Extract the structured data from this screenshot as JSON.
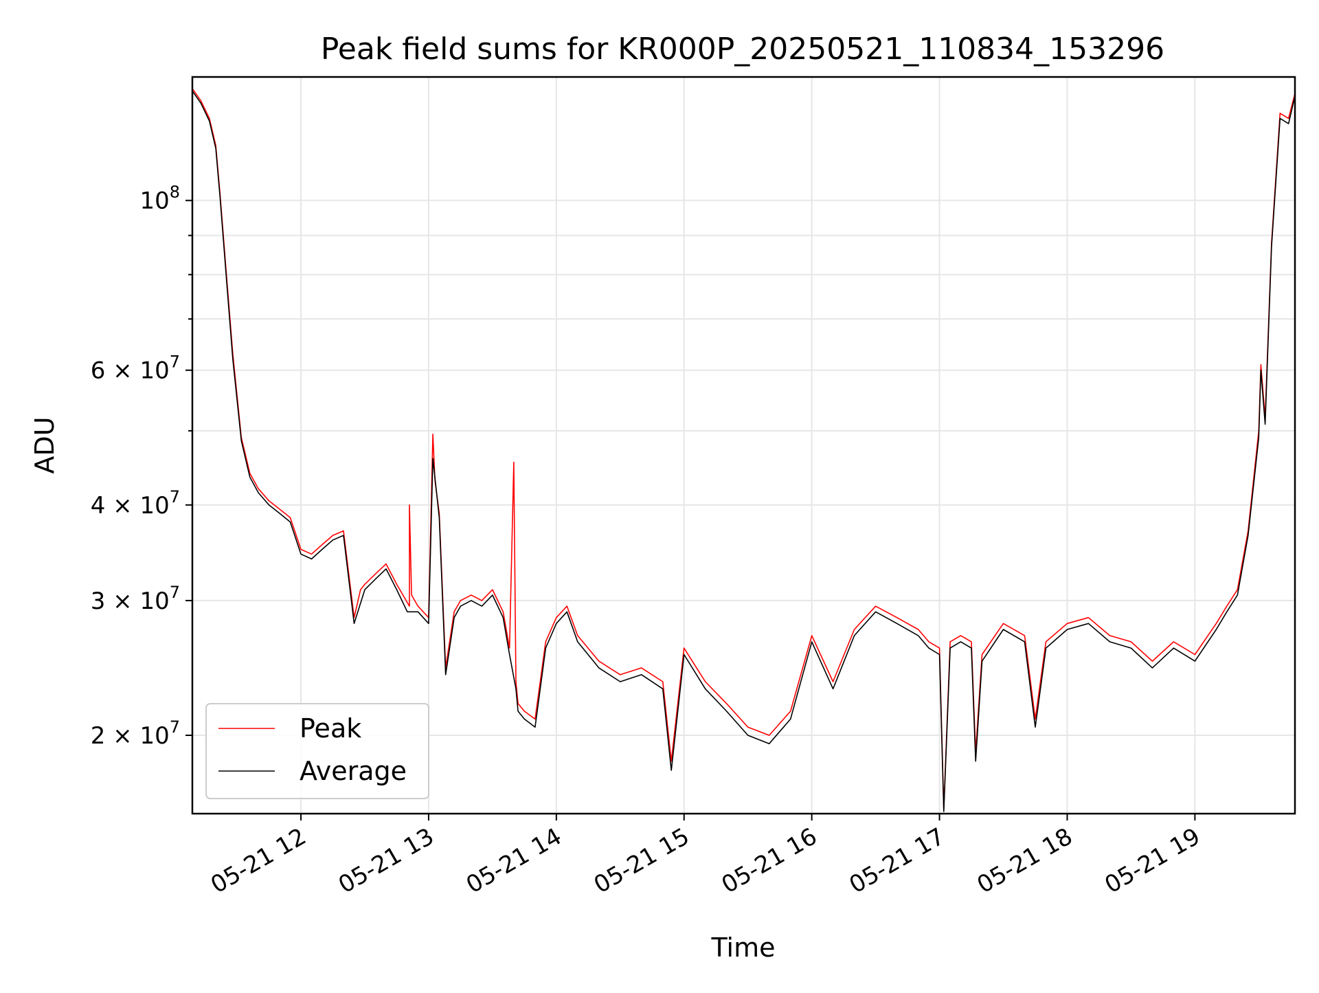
{
  "chart_data": {
    "type": "line",
    "title": "Peak field sums for KR000P_20250521_110834_153296",
    "xlabel": "Time",
    "ylabel": "ADU",
    "y_scale": "log",
    "xlim": [
      "05-21 11:09",
      "05-21 19:47"
    ],
    "ylim": [
      15800000,
      145000000
    ],
    "x_ticks": [
      "05-21 12:00",
      "05-21 13:00",
      "05-21 14:00",
      "05-21 15:00",
      "05-21 16:00",
      "05-21 17:00",
      "05-21 18:00",
      "05-21 19:00"
    ],
    "x_tick_labels": [
      "05-21 12",
      "05-21 13",
      "05-21 14",
      "05-21 15",
      "05-21 16",
      "05-21 17",
      "05-21 18",
      "05-21 19"
    ],
    "y_major_ticks": [
      {
        "value": 20000000,
        "mantissa": "2",
        "exponent": "7"
      },
      {
        "value": 30000000,
        "mantissa": "3",
        "exponent": "7"
      },
      {
        "value": 40000000,
        "mantissa": "4",
        "exponent": "7"
      },
      {
        "value": 60000000,
        "mantissa": "6",
        "exponent": "7"
      },
      {
        "value": 100000000,
        "mantissa": "",
        "exponent": "8"
      }
    ],
    "y_minor_ticks": [
      50000000,
      70000000,
      80000000,
      90000000
    ],
    "grid": true,
    "legend_position": "lower-left",
    "series": [
      {
        "name": "Peak",
        "color": "#ff0000",
        "x": [
          "05-21 11:09",
          "05-21 11:13",
          "05-21 11:17",
          "05-21 11:20",
          "05-21 11:22",
          "05-21 11:25",
          "05-21 11:28",
          "05-21 11:32",
          "05-21 11:36",
          "05-21 11:40",
          "05-21 11:45",
          "05-21 11:50",
          "05-21 11:55",
          "05-21 12:00",
          "05-21 12:05",
          "05-21 12:10",
          "05-21 12:15",
          "05-21 12:20",
          "05-21 12:25",
          "05-21 12:28",
          "05-21 12:30",
          "05-21 12:35",
          "05-21 12:40",
          "05-21 12:45",
          "05-21 12:51",
          "05-21 12:51",
          "05-21 12:52",
          "05-21 12:55",
          "05-21 13:00",
          "05-21 13:02",
          "05-21 13:03",
          "05-21 13:05",
          "05-21 13:08",
          "05-21 13:12",
          "05-21 13:15",
          "05-21 13:20",
          "05-21 13:25",
          "05-21 13:30",
          "05-21 13:35",
          "05-21 13:38",
          "05-21 13:40",
          "05-21 13:41",
          "05-21 13:42",
          "05-21 13:45",
          "05-21 13:50",
          "05-21 13:55",
          "05-21 14:00",
          "05-21 14:05",
          "05-21 14:10",
          "05-21 14:20",
          "05-21 14:30",
          "05-21 14:40",
          "05-21 14:50",
          "05-21 14:54",
          "05-21 15:00",
          "05-21 15:10",
          "05-21 15:20",
          "05-21 15:30",
          "05-21 15:40",
          "05-21 15:50",
          "05-21 16:00",
          "05-21 16:10",
          "05-21 16:20",
          "05-21 16:30",
          "05-21 16:40",
          "05-21 16:50",
          "05-21 16:55",
          "05-21 17:00",
          "05-21 17:02",
          "05-21 17:05",
          "05-21 17:10",
          "05-21 17:15",
          "05-21 17:17",
          "05-21 17:20",
          "05-21 17:30",
          "05-21 17:40",
          "05-21 17:45",
          "05-21 17:50",
          "05-21 18:00",
          "05-21 18:10",
          "05-21 18:20",
          "05-21 18:30",
          "05-21 18:40",
          "05-21 18:50",
          "05-21 19:00",
          "05-21 19:10",
          "05-21 19:15",
          "05-21 19:20",
          "05-21 19:25",
          "05-21 19:30",
          "05-21 19:31",
          "05-21 19:33",
          "05-21 19:36",
          "05-21 19:40",
          "05-21 19:44",
          "05-21 19:47"
        ],
        "values": [
          140000000,
          135000000,
          128000000,
          118000000,
          102000000,
          80000000,
          63000000,
          49000000,
          44000000,
          42000000,
          40500000,
          39500000,
          38500000,
          35000000,
          34500000,
          35500000,
          36500000,
          37000000,
          28500000,
          31000000,
          31500000,
          32500000,
          33500000,
          31500000,
          29500000,
          40000000,
          30500000,
          29500000,
          28500000,
          49500000,
          43000000,
          39000000,
          24500000,
          29000000,
          30000000,
          30500000,
          30000000,
          31000000,
          29000000,
          26000000,
          45500000,
          23500000,
          22000000,
          21500000,
          21000000,
          26500000,
          28500000,
          29500000,
          27000000,
          25000000,
          24000000,
          24500000,
          23500000,
          18500000,
          26000000,
          23500000,
          22000000,
          20500000,
          20000000,
          21500000,
          27000000,
          23500000,
          27500000,
          29500000,
          28500000,
          27500000,
          26500000,
          26000000,
          16000000,
          26500000,
          27000000,
          26500000,
          19000000,
          25500000,
          28000000,
          27000000,
          21000000,
          26500000,
          28000000,
          28500000,
          27000000,
          26500000,
          25000000,
          26500000,
          25500000,
          28000000,
          29500000,
          31000000,
          37000000,
          50000000,
          61000000,
          52000000,
          88000000,
          130000000,
          128000000,
          138000000
        ]
      },
      {
        "name": "Average",
        "color": "#000000",
        "x": [
          "05-21 11:09",
          "05-21 11:13",
          "05-21 11:17",
          "05-21 11:20",
          "05-21 11:22",
          "05-21 11:25",
          "05-21 11:28",
          "05-21 11:32",
          "05-21 11:36",
          "05-21 11:40",
          "05-21 11:45",
          "05-21 11:50",
          "05-21 11:55",
          "05-21 12:00",
          "05-21 12:05",
          "05-21 12:10",
          "05-21 12:15",
          "05-21 12:20",
          "05-21 12:25",
          "05-21 12:30",
          "05-21 12:35",
          "05-21 12:40",
          "05-21 12:45",
          "05-21 12:50",
          "05-21 12:55",
          "05-21 13:00",
          "05-21 13:02",
          "05-21 13:05",
          "05-21 13:08",
          "05-21 13:12",
          "05-21 13:15",
          "05-21 13:20",
          "05-21 13:25",
          "05-21 13:30",
          "05-21 13:35",
          "05-21 13:38",
          "05-21 13:41",
          "05-21 13:42",
          "05-21 13:45",
          "05-21 13:50",
          "05-21 13:55",
          "05-21 14:00",
          "05-21 14:05",
          "05-21 14:10",
          "05-21 14:20",
          "05-21 14:30",
          "05-21 14:40",
          "05-21 14:50",
          "05-21 14:54",
          "05-21 15:00",
          "05-21 15:10",
          "05-21 15:20",
          "05-21 15:30",
          "05-21 15:40",
          "05-21 15:50",
          "05-21 16:00",
          "05-21 16:10",
          "05-21 16:20",
          "05-21 16:30",
          "05-21 16:40",
          "05-21 16:50",
          "05-21 16:55",
          "05-21 17:00",
          "05-21 17:02",
          "05-21 17:05",
          "05-21 17:10",
          "05-21 17:15",
          "05-21 17:17",
          "05-21 17:20",
          "05-21 17:30",
          "05-21 17:40",
          "05-21 17:45",
          "05-21 17:50",
          "05-21 18:00",
          "05-21 18:10",
          "05-21 18:20",
          "05-21 18:30",
          "05-21 18:40",
          "05-21 18:50",
          "05-21 19:00",
          "05-21 19:10",
          "05-21 19:15",
          "05-21 19:20",
          "05-21 19:25",
          "05-21 19:30",
          "05-21 19:31",
          "05-21 19:33",
          "05-21 19:36",
          "05-21 19:40",
          "05-21 19:44",
          "05-21 19:47"
        ],
        "values": [
          139000000,
          134000000,
          127000000,
          117000000,
          101000000,
          79000000,
          62000000,
          48500000,
          43500000,
          41500000,
          40000000,
          39000000,
          38000000,
          34500000,
          34000000,
          35000000,
          36000000,
          36500000,
          28000000,
          31000000,
          32000000,
          33000000,
          31000000,
          29000000,
          29000000,
          28000000,
          46000000,
          38500000,
          24000000,
          28500000,
          29500000,
          30000000,
          29500000,
          30500000,
          28500000,
          25500000,
          23000000,
          21500000,
          21000000,
          20500000,
          26000000,
          28000000,
          29000000,
          26500000,
          24500000,
          23500000,
          24000000,
          23000000,
          18000000,
          25500000,
          23000000,
          21500000,
          20000000,
          19500000,
          21000000,
          26500000,
          23000000,
          27000000,
          29000000,
          28000000,
          27000000,
          26000000,
          25500000,
          15900000,
          26000000,
          26500000,
          26000000,
          18500000,
          25000000,
          27500000,
          26500000,
          20500000,
          26000000,
          27500000,
          28000000,
          26500000,
          26000000,
          24500000,
          26000000,
          25000000,
          27500000,
          29000000,
          30500000,
          36500000,
          49000000,
          60000000,
          51000000,
          87000000,
          128000000,
          126000000,
          137000000
        ]
      }
    ]
  }
}
